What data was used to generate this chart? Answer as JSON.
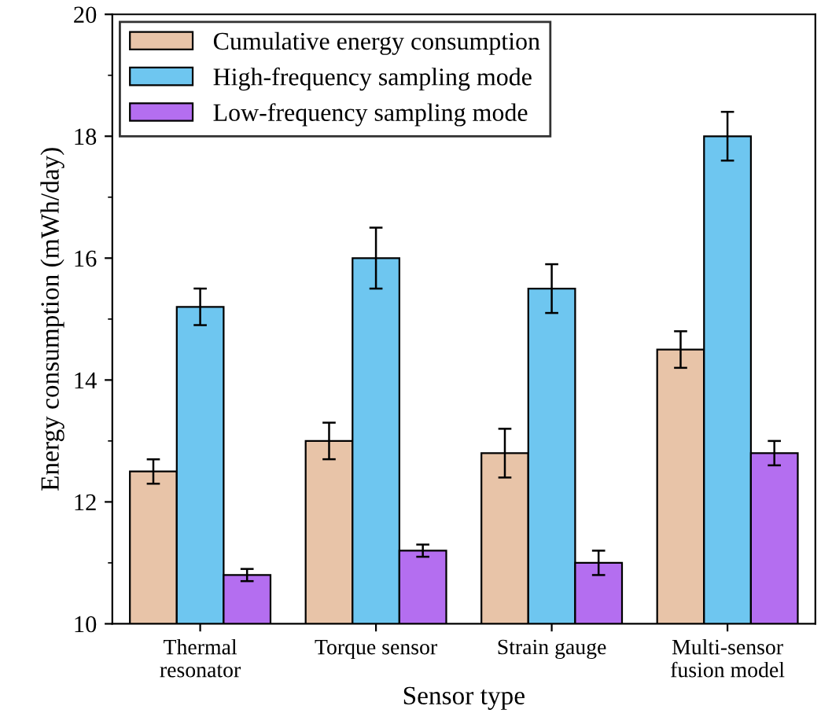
{
  "chart_data": {
    "type": "bar",
    "xlabel": "Sensor type",
    "ylabel": "Energy consumption (mWh/day)",
    "categories": [
      "Thermal\nresonator",
      "Torque sensor",
      "Strain gauge",
      "Multi-sensor\nfusion model"
    ],
    "series": [
      {
        "name": "Cumulative energy consumption",
        "color": "#e8c4a8",
        "values": [
          12.5,
          13.0,
          12.8,
          14.5
        ],
        "errors": [
          0.2,
          0.3,
          0.4,
          0.3
        ]
      },
      {
        "name": "High-frequency sampling mode",
        "color": "#6ec6f0",
        "values": [
          15.2,
          16.0,
          15.5,
          18.0
        ],
        "errors": [
          0.3,
          0.5,
          0.4,
          0.4
        ]
      },
      {
        "name": "Low-frequency sampling mode",
        "color": "#b46ef0",
        "values": [
          10.8,
          11.2,
          11.0,
          12.8
        ],
        "errors": [
          0.1,
          0.1,
          0.2,
          0.2
        ]
      }
    ],
    "ylim": [
      10,
      20
    ],
    "yticks": [
      10,
      12,
      14,
      16,
      18,
      20
    ],
    "legend": "top left",
    "grid": false
  }
}
